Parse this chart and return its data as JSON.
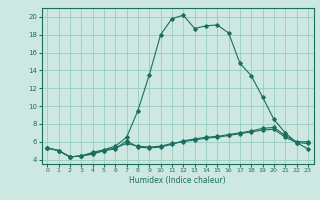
{
  "xlabel": "Humidex (Indice chaleur)",
  "x_ticks": [
    0,
    1,
    2,
    3,
    4,
    5,
    6,
    7,
    8,
    9,
    10,
    11,
    12,
    13,
    14,
    15,
    16,
    17,
    18,
    19,
    20,
    21,
    22,
    23
  ],
  "xlim": [
    -0.5,
    23.5
  ],
  "ylim": [
    3.5,
    21
  ],
  "y_ticks": [
    4,
    6,
    8,
    10,
    12,
    14,
    16,
    18,
    20
  ],
  "bg_color": "#cce8e0",
  "grid_color": "#99ccc2",
  "line_color": "#1a6e60",
  "series1_x": [
    0,
    1,
    2,
    3,
    4,
    5,
    6,
    7,
    8,
    9,
    10,
    11,
    12,
    13,
    14,
    15,
    16,
    17,
    18,
    19,
    20,
    21,
    22,
    23
  ],
  "series1_y": [
    5.3,
    5.0,
    4.3,
    4.4,
    4.6,
    5.0,
    5.2,
    6.1,
    5.4,
    5.3,
    5.4,
    5.7,
    6.1,
    6.3,
    6.5,
    6.6,
    6.8,
    7.0,
    7.2,
    7.5,
    7.6,
    6.7,
    6.0,
    6.0
  ],
  "series2_x": [
    0,
    1,
    2,
    3,
    4,
    5,
    6,
    7,
    8,
    9,
    10,
    11,
    12,
    13,
    14,
    15,
    16,
    17,
    18,
    19,
    20,
    21,
    22,
    23
  ],
  "series2_y": [
    5.3,
    5.0,
    4.3,
    4.4,
    4.8,
    5.1,
    5.5,
    6.5,
    9.5,
    13.5,
    18.0,
    19.8,
    20.2,
    18.7,
    19.0,
    19.1,
    18.2,
    14.8,
    13.4,
    11.0,
    8.5,
    7.0,
    5.9,
    5.2
  ],
  "series3_x": [
    0,
    1,
    2,
    3,
    4,
    5,
    6,
    7,
    8,
    9,
    10,
    11,
    12,
    13,
    14,
    15,
    16,
    17,
    18,
    19,
    20,
    21,
    22,
    23
  ],
  "series3_y": [
    5.3,
    5.0,
    4.3,
    4.4,
    4.7,
    5.0,
    5.3,
    5.8,
    5.5,
    5.4,
    5.5,
    5.8,
    6.0,
    6.2,
    6.4,
    6.5,
    6.7,
    6.9,
    7.1,
    7.3,
    7.4,
    6.5,
    5.9,
    5.8
  ]
}
